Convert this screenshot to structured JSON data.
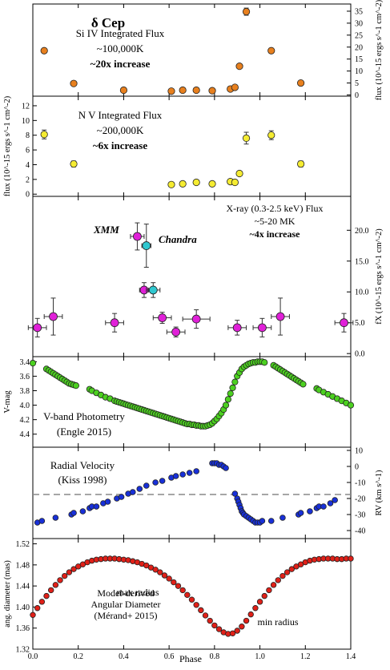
{
  "figure": {
    "title": "δ Cep",
    "x_label": "Phase",
    "x_ticks": [
      "0.0",
      "0.2",
      "0.4",
      "0.6",
      "0.8",
      "1.0",
      "1.2",
      "1.4"
    ],
    "x_range": [
      0.0,
      1.4
    ]
  },
  "chart_data": [
    {
      "type": "scatter",
      "panel": "si-iv",
      "label_lines": [
        "Si IV Integrated Flux",
        "~100,000K",
        "~20x increase"
      ],
      "ylabel_right": "flux (10^-15 ergs s^-1 cm^-2)",
      "yticks_right": [
        "0",
        "5",
        "10",
        "15",
        "20",
        "25",
        "30",
        "35"
      ],
      "ylim": [
        -0.5,
        38
      ],
      "color": "#E8801E",
      "x": [
        0.05,
        0.18,
        0.4,
        0.61,
        0.66,
        0.72,
        0.79,
        0.87,
        0.89,
        0.91,
        0.94,
        1.05,
        1.18
      ],
      "y": [
        18.5,
        4.8,
        2.0,
        1.6,
        2.0,
        2.0,
        1.8,
        2.5,
        3.2,
        12.0,
        34.8,
        18.5,
        5.0
      ],
      "yerr": [
        0.8,
        0.5,
        0.4,
        0.4,
        0.4,
        0.4,
        0.4,
        0.4,
        0.5,
        0.8,
        1.5,
        1.0,
        0.5
      ]
    },
    {
      "type": "scatter",
      "panel": "n-v",
      "label_lines": [
        "N V Integrated Flux",
        "~200,000K",
        "~6x increase"
      ],
      "ylabel_left": "flux (10^-15 ergs s^-1 cm^-2)",
      "yticks_left": [
        "0",
        "2",
        "4",
        "6",
        "8",
        "10",
        "12"
      ],
      "ylim": [
        -0.3,
        13.3
      ],
      "color": "#F5EC32",
      "x": [
        0.05,
        0.18,
        0.61,
        0.66,
        0.72,
        0.79,
        0.87,
        0.89,
        0.91,
        0.94,
        1.05,
        1.18
      ],
      "y": [
        8.1,
        4.1,
        1.3,
        1.4,
        1.6,
        1.4,
        1.7,
        1.6,
        2.8,
        7.6,
        8.0,
        4.1
      ],
      "yerr": [
        0.6,
        0.4,
        0.3,
        0.3,
        0.3,
        0.3,
        0.3,
        0.3,
        0.3,
        0.8,
        0.6,
        0.4
      ]
    },
    {
      "type": "scatter",
      "panel": "x-ray",
      "label_lines": [
        "X-ray (0.3-2.5 keV) Flux",
        "~5-20 MK",
        "~4x increase"
      ],
      "ylabel_right": "fX (10^-15 ergs s^-1 cm^-2)",
      "yticks_right": [
        "0.0",
        "5.0",
        "10.0",
        "15.0",
        "20.0"
      ],
      "ylim": [
        -0.5,
        25.5
      ],
      "series": [
        {
          "name": "XMM",
          "color": "#E020D8",
          "x": [
            0.02,
            0.09,
            0.36,
            0.46,
            0.49,
            0.57,
            0.63,
            0.72,
            0.9,
            1.01,
            1.09,
            1.37
          ],
          "y": [
            4.2,
            6.0,
            5.0,
            19.0,
            10.3,
            5.8,
            3.5,
            5.6,
            4.2,
            4.2,
            6.0,
            5.0
          ],
          "xerr": [
            0.04,
            0.04,
            0.04,
            0.03,
            0.02,
            0.04,
            0.04,
            0.06,
            0.04,
            0.04,
            0.04,
            0.04
          ],
          "yerr": [
            1.5,
            3.0,
            1.5,
            2.2,
            1.2,
            0.9,
            0.8,
            1.5,
            1.2,
            1.5,
            3.0,
            1.5
          ]
        },
        {
          "name": "Chandra",
          "color": "#30C8D0",
          "x": [
            0.5,
            0.53
          ],
          "y": [
            17.5,
            10.3
          ],
          "xerr": [
            0.02,
            0.03
          ],
          "yerr": [
            3.5,
            1.2
          ]
        }
      ]
    },
    {
      "type": "scatter",
      "panel": "v-band",
      "label_lines": [
        "V-band Photometry",
        "(Engle 2015)"
      ],
      "ylabel_left": "V-mag",
      "yticks_left": [
        "3.4",
        "3.6",
        "3.8",
        "4.0",
        "4.2",
        "4.4"
      ],
      "ylim": [
        3.33,
        4.58
      ],
      "y_inverted": true,
      "color": "#4CD020",
      "x": [
        0.0,
        0.06,
        0.07,
        0.08,
        0.09,
        0.1,
        0.11,
        0.12,
        0.13,
        0.14,
        0.15,
        0.16,
        0.17,
        0.18,
        0.19,
        0.25,
        0.26,
        0.28,
        0.3,
        0.32,
        0.34,
        0.36,
        0.37,
        0.38,
        0.39,
        0.4,
        0.41,
        0.42,
        0.43,
        0.44,
        0.45,
        0.46,
        0.47,
        0.48,
        0.49,
        0.5,
        0.51,
        0.52,
        0.53,
        0.54,
        0.55,
        0.56,
        0.57,
        0.58,
        0.59,
        0.6,
        0.61,
        0.62,
        0.63,
        0.64,
        0.65,
        0.66,
        0.67,
        0.68,
        0.69,
        0.7,
        0.71,
        0.72,
        0.73,
        0.74,
        0.75,
        0.76,
        0.77,
        0.78,
        0.79,
        0.8,
        0.81,
        0.82,
        0.83,
        0.84,
        0.85,
        0.86,
        0.87,
        0.88,
        0.89,
        0.9,
        0.91,
        0.92,
        0.93,
        0.94,
        0.95,
        0.96,
        0.97,
        0.98,
        0.99,
        1.0,
        1.01,
        1.02,
        1.06,
        1.07,
        1.08,
        1.09,
        1.1,
        1.11,
        1.12,
        1.13,
        1.14,
        1.15,
        1.16,
        1.17,
        1.18,
        1.19,
        1.25,
        1.26,
        1.28,
        1.3,
        1.32,
        1.34,
        1.36,
        1.38,
        1.4
      ],
      "y": [
        3.42,
        3.5,
        3.52,
        3.54,
        3.56,
        3.58,
        3.6,
        3.62,
        3.64,
        3.66,
        3.68,
        3.7,
        3.71,
        3.72,
        3.73,
        3.78,
        3.8,
        3.83,
        3.86,
        3.89,
        3.91,
        3.94,
        3.95,
        3.96,
        3.97,
        3.98,
        3.99,
        4.0,
        4.01,
        4.02,
        4.03,
        4.04,
        4.05,
        4.06,
        4.07,
        4.08,
        4.09,
        4.1,
        4.11,
        4.12,
        4.13,
        4.14,
        4.15,
        4.16,
        4.17,
        4.18,
        4.19,
        4.2,
        4.21,
        4.22,
        4.23,
        4.24,
        4.25,
        4.26,
        4.26,
        4.27,
        4.27,
        4.28,
        4.28,
        4.29,
        4.29,
        4.29,
        4.28,
        4.27,
        4.25,
        4.22,
        4.19,
        4.15,
        4.11,
        4.06,
        4.0,
        3.92,
        3.84,
        3.76,
        3.68,
        3.6,
        3.55,
        3.5,
        3.47,
        3.45,
        3.43,
        3.42,
        3.41,
        3.41,
        3.4,
        3.4,
        3.4,
        3.41,
        3.45,
        3.47,
        3.49,
        3.51,
        3.53,
        3.55,
        3.57,
        3.59,
        3.61,
        3.63,
        3.65,
        3.67,
        3.69,
        3.71,
        3.77,
        3.79,
        3.82,
        3.85,
        3.88,
        3.91,
        3.94,
        3.97,
        4.0
      ]
    },
    {
      "type": "scatter",
      "panel": "radial-velocity",
      "label_lines": [
        "Radial Velocity",
        "(Kiss 1998)"
      ],
      "ylabel_right": "RV (km s^-1)",
      "yticks_right": [
        "10",
        "0",
        "-10",
        "-20",
        "-30",
        "-40"
      ],
      "ylim": [
        -45,
        12
      ],
      "reference_line_y": -17.5,
      "color": "#1830D8",
      "x": [
        0.02,
        0.04,
        0.1,
        0.17,
        0.18,
        0.22,
        0.25,
        0.26,
        0.28,
        0.31,
        0.33,
        0.37,
        0.39,
        0.42,
        0.44,
        0.47,
        0.5,
        0.54,
        0.57,
        0.61,
        0.63,
        0.66,
        0.69,
        0.72,
        0.79,
        0.8,
        0.81,
        0.82,
        0.83,
        0.84,
        0.85,
        0.89,
        0.9,
        0.905,
        0.91,
        0.915,
        0.92,
        0.925,
        0.93,
        0.94,
        0.95,
        0.96,
        0.97,
        0.98,
        0.99,
        1.0,
        1.01,
        1.05,
        1.1,
        1.17,
        1.18,
        1.22,
        1.25,
        1.26,
        1.28,
        1.31,
        1.33
      ],
      "y": [
        -35,
        -34,
        -32,
        -30,
        -29,
        -28,
        -26,
        -25,
        -25,
        -23,
        -22,
        -20,
        -19,
        -17,
        -16,
        -14,
        -12,
        -10,
        -9,
        -7,
        -6,
        -5,
        -4,
        -3,
        2,
        2,
        2,
        1,
        1,
        0,
        -1,
        -17,
        -20,
        -22,
        -24,
        -26,
        -28,
        -29,
        -30,
        -31,
        -32,
        -33,
        -34,
        -35,
        -35,
        -35,
        -34,
        -34,
        -32,
        -30,
        -29,
        -28,
        -26,
        -25,
        -25,
        -23,
        -21
      ]
    },
    {
      "type": "scatter",
      "panel": "angular-diameter",
      "label_lines": [
        "Model-derived",
        "Angular Diameter",
        "(Mérand+ 2015)"
      ],
      "annotations": [
        "max radius",
        "min radius"
      ],
      "ylabel_left": "ang. diameter (mas)",
      "yticks_left": [
        "1.32",
        "1.36",
        "1.40",
        "1.44",
        "1.48",
        "1.52"
      ],
      "ylim": [
        1.32,
        1.53
      ],
      "color": "#E02018",
      "x": [
        0.0,
        0.02,
        0.04,
        0.06,
        0.08,
        0.1,
        0.12,
        0.14,
        0.16,
        0.18,
        0.2,
        0.22,
        0.24,
        0.26,
        0.28,
        0.3,
        0.32,
        0.34,
        0.36,
        0.38,
        0.4,
        0.42,
        0.44,
        0.46,
        0.48,
        0.5,
        0.52,
        0.54,
        0.56,
        0.58,
        0.6,
        0.62,
        0.64,
        0.66,
        0.68,
        0.7,
        0.72,
        0.74,
        0.76,
        0.78,
        0.8,
        0.82,
        0.84,
        0.86,
        0.88,
        0.9,
        0.92,
        0.94,
        0.96,
        0.98,
        1.0,
        1.02,
        1.04,
        1.06,
        1.08,
        1.1,
        1.12,
        1.14,
        1.16,
        1.18,
        1.2,
        1.22,
        1.24,
        1.26,
        1.28,
        1.3,
        1.32,
        1.34,
        1.36,
        1.38,
        1.4
      ],
      "y": [
        1.385,
        1.398,
        1.41,
        1.421,
        1.432,
        1.442,
        1.451,
        1.459,
        1.466,
        1.472,
        1.477,
        1.481,
        1.485,
        1.488,
        1.49,
        1.491,
        1.492,
        1.492,
        1.492,
        1.491,
        1.49,
        1.489,
        1.487,
        1.485,
        1.482,
        1.479,
        1.475,
        1.471,
        1.466,
        1.46,
        1.454,
        1.447,
        1.44,
        1.432,
        1.423,
        1.414,
        1.404,
        1.394,
        1.384,
        1.374,
        1.365,
        1.358,
        1.352,
        1.349,
        1.35,
        1.355,
        1.363,
        1.374,
        1.386,
        1.398,
        1.41,
        1.421,
        1.432,
        1.442,
        1.451,
        1.459,
        1.466,
        1.472,
        1.477,
        1.481,
        1.485,
        1.488,
        1.49,
        1.491,
        1.492,
        1.492,
        1.492,
        1.491,
        1.491,
        1.492,
        1.492
      ]
    }
  ]
}
